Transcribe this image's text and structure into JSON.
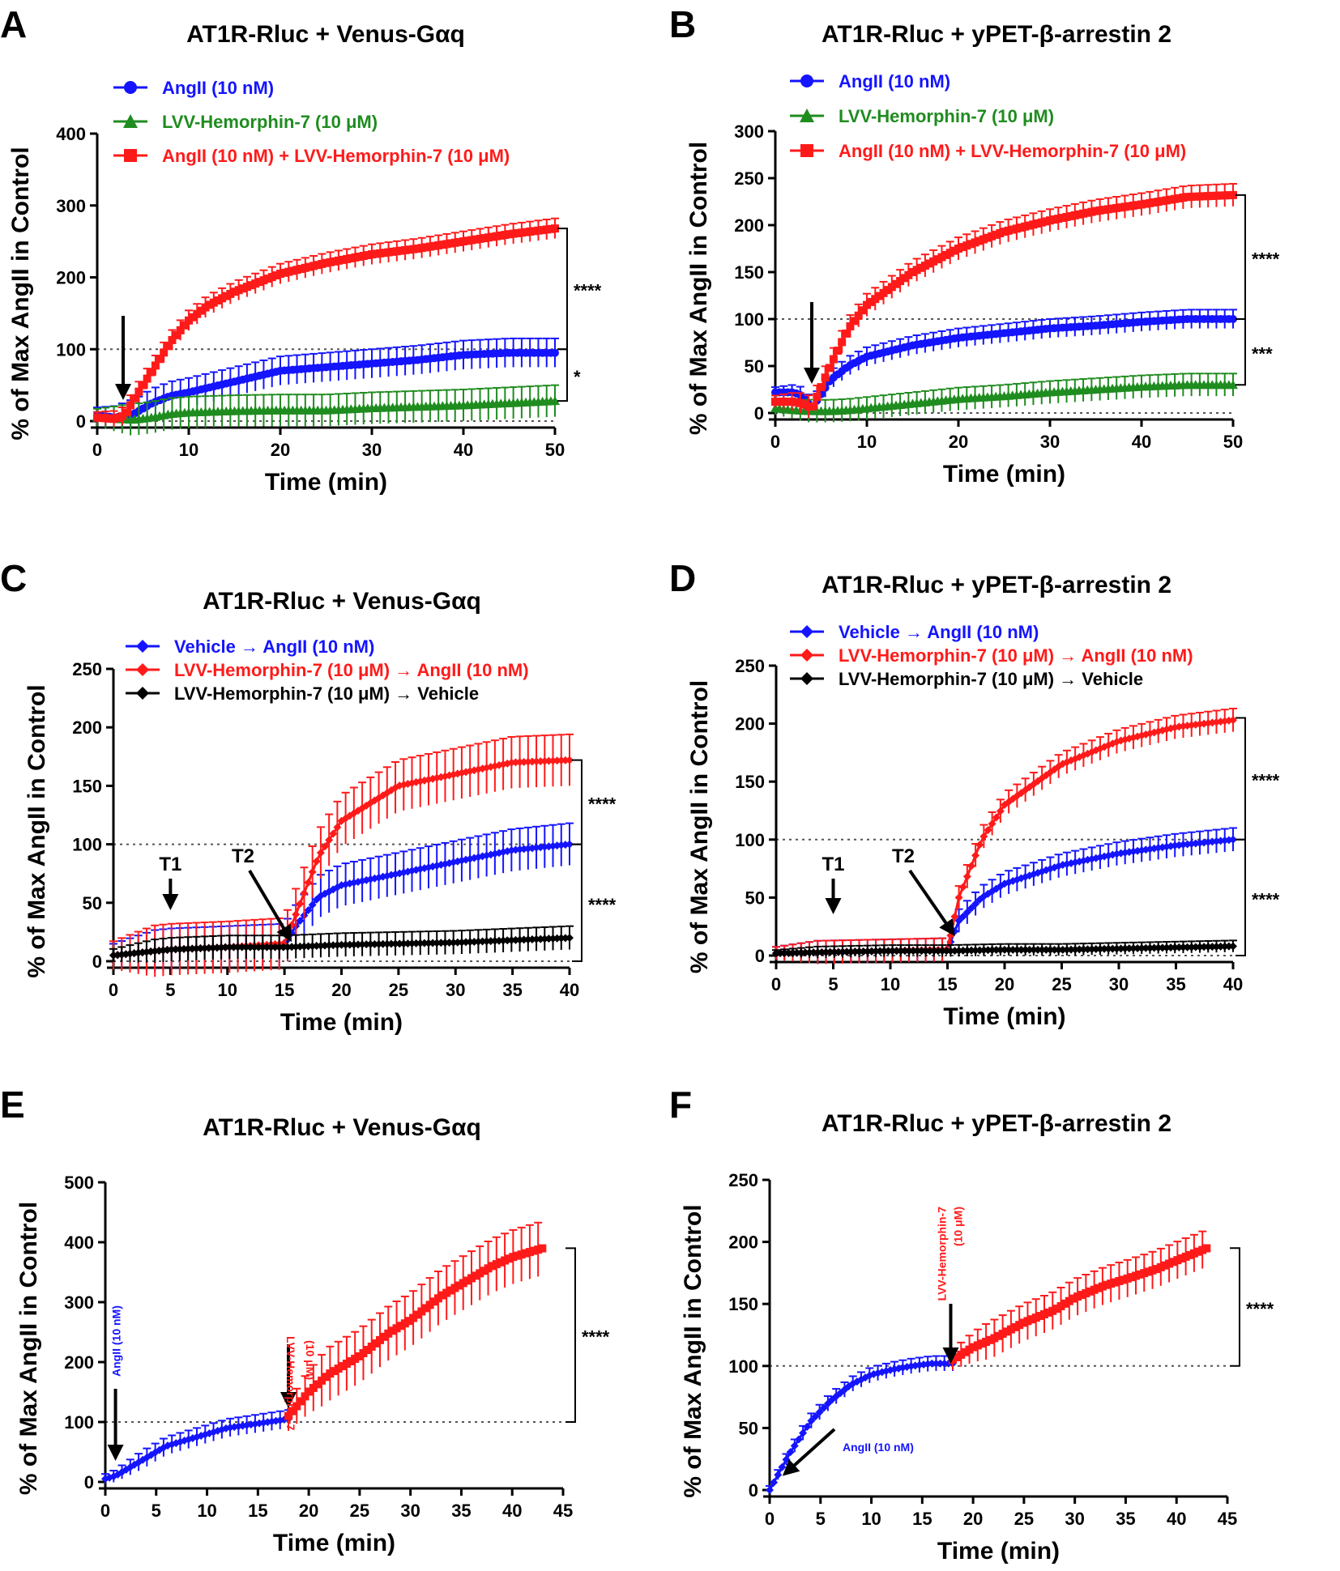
{
  "colors": {
    "blue": "#1414ff",
    "red": "#ff1a1a",
    "green": "#1f8c1f",
    "black": "#000000"
  },
  "chart_data": [
    {
      "panel": "A",
      "type": "line",
      "title": "AT1R-Rluc + Venus-Gαq",
      "xlabel": "Time (min)",
      "ylabel": "% of Max AngII in Control",
      "xlim": [
        0,
        50
      ],
      "ylim": [
        0,
        400
      ],
      "xticks": [
        0,
        10,
        20,
        30,
        40,
        50
      ],
      "yticks": [
        0,
        100,
        200,
        300,
        400
      ],
      "ref_lines": [
        0,
        100
      ],
      "series": [
        {
          "name": "AngII (10 nM)",
          "color": "blue",
          "marker": "circle",
          "err": 20,
          "x": [
            0,
            2,
            4,
            6,
            8,
            10,
            15,
            20,
            25,
            30,
            35,
            40,
            45,
            50
          ],
          "y": [
            8,
            5,
            10,
            25,
            35,
            40,
            55,
            70,
            75,
            80,
            85,
            92,
            95,
            95
          ]
        },
        {
          "name": "LVV-Hemorphin-7 (10 μM)",
          "color": "green",
          "marker": "triangle",
          "err": 22,
          "x": [
            0,
            2,
            4,
            6,
            8,
            10,
            15,
            20,
            25,
            30,
            35,
            40,
            45,
            50
          ],
          "y": [
            5,
            3,
            2,
            5,
            10,
            12,
            14,
            15,
            15,
            18,
            20,
            22,
            25,
            28
          ]
        },
        {
          "name": "AngII (10 nM) + LVV-Hemorphin-7 (10 μM)",
          "color": "red",
          "marker": "square",
          "err": 14,
          "x": [
            0,
            2,
            3,
            4,
            6,
            8,
            10,
            12,
            15,
            20,
            25,
            30,
            35,
            40,
            45,
            50
          ],
          "y": [
            5,
            3,
            8,
            30,
            70,
            110,
            140,
            160,
            180,
            205,
            220,
            232,
            240,
            250,
            260,
            268
          ]
        }
      ],
      "annotations": {
        "stars": [
          "****",
          "*"
        ]
      }
    },
    {
      "panel": "B",
      "type": "line",
      "title": "AT1R-Rluc + yPET-β-arrestin 2",
      "xlabel": "Time (min)",
      "ylabel": "% of Max AngII in Control",
      "xlim": [
        0,
        50
      ],
      "ylim": [
        0,
        300
      ],
      "xticks": [
        0,
        10,
        20,
        30,
        40,
        50
      ],
      "yticks": [
        0,
        50,
        100,
        150,
        200,
        250,
        300
      ],
      "ref_lines": [
        0,
        100
      ],
      "series": [
        {
          "name": "AngII (10 nM)",
          "color": "blue",
          "marker": "circle",
          "err": 10,
          "x": [
            0,
            2,
            3,
            4,
            6,
            8,
            10,
            15,
            20,
            25,
            30,
            35,
            40,
            45,
            50
          ],
          "y": [
            22,
            22,
            18,
            5,
            35,
            50,
            60,
            72,
            80,
            85,
            90,
            93,
            97,
            100,
            100
          ]
        },
        {
          "name": "LVV-Hemorphin-7 (10 μM)",
          "color": "green",
          "marker": "triangle",
          "err": 12,
          "x": [
            0,
            2,
            4,
            6,
            8,
            10,
            15,
            20,
            25,
            30,
            35,
            40,
            45,
            50
          ],
          "y": [
            5,
            3,
            2,
            2,
            3,
            5,
            10,
            15,
            18,
            22,
            25,
            28,
            30,
            30
          ]
        },
        {
          "name": "AngII (10 nM) + LVV-Hemorphin-7 (10 μM)",
          "color": "red",
          "marker": "square",
          "err": 12,
          "x": [
            0,
            2,
            3,
            4,
            6,
            8,
            10,
            15,
            20,
            25,
            30,
            35,
            40,
            45,
            50
          ],
          "y": [
            12,
            12,
            10,
            5,
            50,
            90,
            115,
            150,
            175,
            193,
            205,
            215,
            222,
            230,
            232
          ]
        }
      ],
      "annotations": {
        "stars": [
          "****",
          "***"
        ]
      }
    },
    {
      "panel": "C",
      "type": "line",
      "title": "AT1R-Rluc + Venus-Gαq",
      "xlabel": "Time (min)",
      "ylabel": "% of Max AngII in Control",
      "xlim": [
        0,
        40
      ],
      "ylim": [
        0,
        250
      ],
      "xticks": [
        0,
        5,
        10,
        15,
        20,
        25,
        30,
        35,
        40
      ],
      "yticks": [
        0,
        50,
        100,
        150,
        200,
        250
      ],
      "ref_lines": [
        0,
        100
      ],
      "series": [
        {
          "name": "Vehicle → AngII (10 nM)",
          "color": "blue",
          "marker": "diamond",
          "err": 18,
          "x": [
            0,
            5,
            10,
            15,
            16,
            18,
            20,
            25,
            30,
            35,
            40
          ],
          "y": [
            5,
            10,
            12,
            14,
            30,
            55,
            65,
            75,
            85,
            95,
            100
          ]
        },
        {
          "name": "LVV-Hemorphin-7 (10 μM) → AngII (10 nM)",
          "color": "red",
          "marker": "diamond",
          "err": 22,
          "x": [
            0,
            5,
            10,
            15,
            16,
            18,
            20,
            25,
            30,
            35,
            40
          ],
          "y": [
            5,
            10,
            12,
            15,
            40,
            90,
            120,
            150,
            160,
            170,
            172
          ]
        },
        {
          "name": "LVV-Hemorphin-7 (10 μM) → Vehicle",
          "color": "black",
          "marker": "diamond",
          "err": 10,
          "x": [
            0,
            5,
            10,
            15,
            20,
            25,
            30,
            35,
            40
          ],
          "y": [
            5,
            10,
            12,
            12,
            14,
            15,
            16,
            18,
            20
          ]
        }
      ],
      "annotations": {
        "stars": [
          "****",
          "****"
        ],
        "T1": "T1",
        "T2": "T2"
      }
    },
    {
      "panel": "D",
      "type": "line",
      "title": "AT1R-Rluc + yPET-β-arrestin 2",
      "xlabel": "Time (min)",
      "ylabel": "% of Max AngII in Control",
      "xlim": [
        0,
        40
      ],
      "ylim": [
        0,
        250
      ],
      "xticks": [
        0,
        5,
        10,
        15,
        20,
        25,
        30,
        35,
        40
      ],
      "yticks": [
        0,
        50,
        100,
        150,
        200,
        250
      ],
      "ref_lines": [
        0,
        100
      ],
      "series": [
        {
          "name": "Vehicle → AngII (10 nM)",
          "color": "blue",
          "marker": "diamond",
          "err": 10,
          "x": [
            0,
            5,
            10,
            15,
            16,
            18,
            20,
            25,
            30,
            35,
            40
          ],
          "y": [
            2,
            3,
            4,
            5,
            30,
            50,
            62,
            78,
            88,
            95,
            100
          ]
        },
        {
          "name": "LVV-Hemorphin-7 (10 μM) → AngII (10 nM)",
          "color": "red",
          "marker": "diamond",
          "err": 10,
          "x": [
            0,
            5,
            10,
            15,
            16,
            18,
            20,
            25,
            30,
            35,
            40
          ],
          "y": [
            2,
            3,
            4,
            5,
            50,
            100,
            130,
            165,
            185,
            197,
            203
          ]
        },
        {
          "name": "LVV-Hemorphin-7 (10 μM) → Vehicle",
          "color": "black",
          "marker": "diamond",
          "err": 5,
          "x": [
            0,
            5,
            10,
            15,
            20,
            25,
            30,
            35,
            40
          ],
          "y": [
            2,
            3,
            4,
            4,
            5,
            5,
            6,
            7,
            8
          ]
        }
      ],
      "annotations": {
        "stars": [
          "****",
          "****"
        ],
        "T1": "T1",
        "T2": "T2"
      }
    },
    {
      "panel": "E",
      "type": "line",
      "title": "AT1R-Rluc + Venus-Gαq",
      "xlabel": "Time (min)",
      "ylabel": "% of Max AngII in Control",
      "xlim": [
        0,
        45
      ],
      "ylim": [
        0,
        500
      ],
      "xticks": [
        0,
        5,
        10,
        15,
        20,
        25,
        30,
        35,
        40,
        45
      ],
      "yticks": [
        0,
        100,
        200,
        300,
        400,
        500
      ],
      "ref_lines": [
        100
      ],
      "series": [
        {
          "name": "AngII (10 nM)",
          "color": "blue",
          "marker": "diamond",
          "err": 15,
          "x": [
            0,
            1,
            2,
            4,
            6,
            8,
            10,
            12,
            14,
            16,
            18
          ],
          "y": [
            5,
            10,
            20,
            40,
            60,
            70,
            80,
            90,
            95,
            100,
            105
          ]
        },
        {
          "name": "LVV-Hemorphin-7 (10 μM)",
          "color": "red",
          "marker": "square",
          "err": 45,
          "x": [
            18,
            20,
            22,
            25,
            28,
            30,
            33,
            35,
            38,
            40,
            43
          ],
          "y": [
            110,
            150,
            180,
            210,
            250,
            270,
            310,
            330,
            360,
            375,
            390
          ]
        }
      ],
      "annotations": {
        "stars": [
          "****"
        ],
        "angII_label": "AngII (10 nM)",
        "lvv_label_line1": "LVV-Hemorphin-7",
        "lvv_label_line2": "(10 μM)"
      }
    },
    {
      "panel": "F",
      "type": "line",
      "title": "AT1R-Rluc + yPET-β-arrestin 2",
      "xlabel": "Time (min)",
      "ylabel": "% of Max AngII in Control",
      "xlim": [
        0,
        45
      ],
      "ylim": [
        0,
        250
      ],
      "xticks": [
        0,
        5,
        10,
        15,
        20,
        25,
        30,
        35,
        40,
        45
      ],
      "yticks": [
        0,
        50,
        100,
        150,
        200,
        250
      ],
      "ref_lines": [
        100
      ],
      "series": [
        {
          "name": "AngII (10 nM)",
          "color": "blue",
          "marker": "diamond",
          "err": 6,
          "x": [
            0,
            1,
            2,
            4,
            6,
            8,
            10,
            12,
            14,
            16,
            18
          ],
          "y": [
            0,
            15,
            30,
            55,
            72,
            85,
            93,
            97,
            100,
            102,
            102
          ]
        },
        {
          "name": "LVV-Hemorphin-7 (10 μM)",
          "color": "red",
          "marker": "square",
          "err": 15,
          "x": [
            18,
            20,
            22,
            25,
            28,
            30,
            33,
            35,
            38,
            40,
            43
          ],
          "y": [
            105,
            115,
            122,
            135,
            145,
            155,
            165,
            170,
            178,
            185,
            195
          ]
        }
      ],
      "annotations": {
        "stars": [
          "****"
        ],
        "angII_label": "AngII (10 nM)",
        "lvv_label_line1": "LVV-Hemorphin-7",
        "lvv_label_line2": "(10 μM)"
      }
    }
  ]
}
